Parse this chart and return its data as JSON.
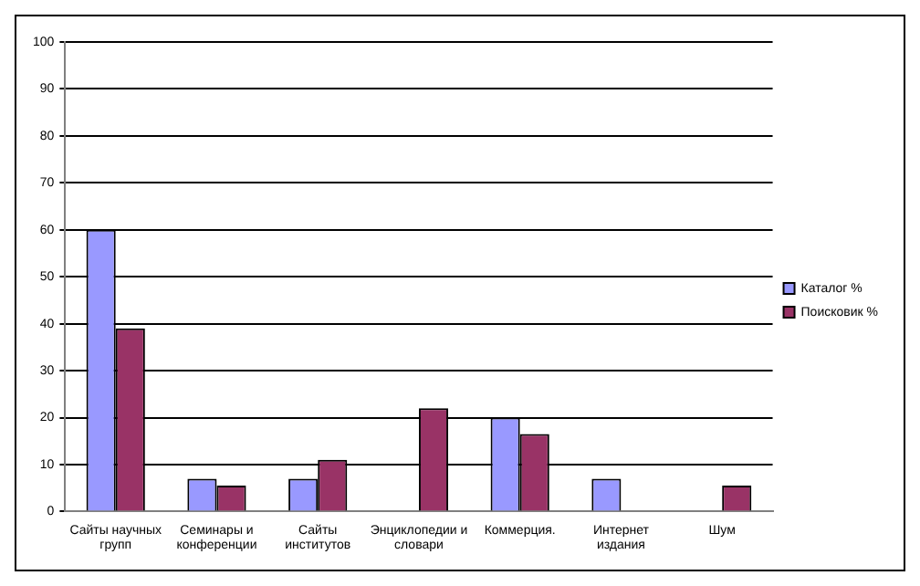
{
  "chart_data": {
    "type": "bar",
    "categories": [
      "Сайты научных групп",
      "Семинары и конференции",
      "Сайты институтов",
      "Энциклопедии и словари",
      "Коммерция.",
      "Интернет издания",
      "Шум"
    ],
    "series": [
      {
        "name": "Каталог %",
        "color": "#9999ff",
        "values": [
          60,
          7,
          7,
          null,
          20,
          7,
          null
        ]
      },
      {
        "name": "Поисковик %",
        "color": "#993366",
        "values": [
          39,
          5.5,
          11,
          22,
          16.5,
          null,
          5.5
        ]
      }
    ],
    "ylim": [
      0,
      100
    ],
    "yticks": [
      0,
      10,
      20,
      30,
      40,
      50,
      60,
      70,
      80,
      90,
      100
    ],
    "grid": "y",
    "legend": "right"
  }
}
